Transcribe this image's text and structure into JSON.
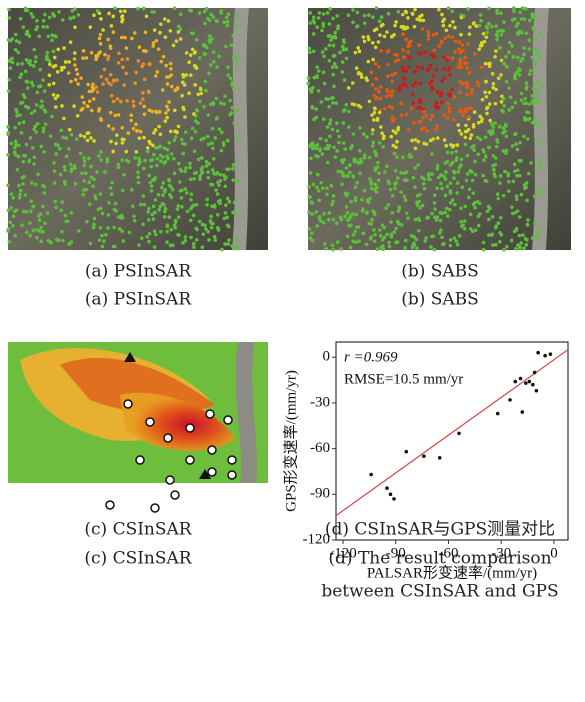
{
  "panels": [
    {
      "captions": [
        "(a) PSInSAR",
        "(a) PSInSAR"
      ]
    },
    {
      "captions": [
        "(b) SABS",
        "(b) SABS"
      ]
    },
    {
      "captions": [
        "(c) CSInSAR",
        "(c) CSInSAR"
      ]
    },
    {
      "captions": [
        "(d) CSInSAR与GPS测量对比",
        "(d) The result comparison",
        "between CSInSAR and GPS"
      ]
    }
  ],
  "chart_data": {
    "type": "scatter",
    "x_label": "PALSAR形变速率/(mm/yr)",
    "y_label": "GPS形变速率/(mm/yr)",
    "annotations": [
      "r =0.969",
      "RMSE=10.5 mm/yr"
    ],
    "x": [
      -104,
      -95,
      -93,
      -91,
      -84,
      -74,
      -65,
      -54,
      -32,
      -25,
      -22,
      -19,
      -18,
      -16,
      -14,
      -12,
      -11,
      -10,
      -9,
      -5,
      -2
    ],
    "values": [
      -77,
      -86,
      -90,
      -93,
      -62,
      -65,
      -66,
      -50,
      -37,
      -28,
      -16,
      -14,
      -36,
      -17,
      -16,
      -18,
      -10,
      -22,
      3,
      1,
      2
    ],
    "color": "#111111",
    "fit_line": {
      "x": [
        -124,
        8
      ],
      "y": [
        -104,
        5
      ],
      "color": "#d9534f"
    },
    "xlim": [
      -124,
      8
    ],
    "ylim": [
      -120,
      10
    ],
    "xticks": [
      -120,
      -90,
      -60,
      -30,
      0
    ],
    "yticks": [
      -120,
      -90,
      -60,
      -30,
      0
    ]
  }
}
